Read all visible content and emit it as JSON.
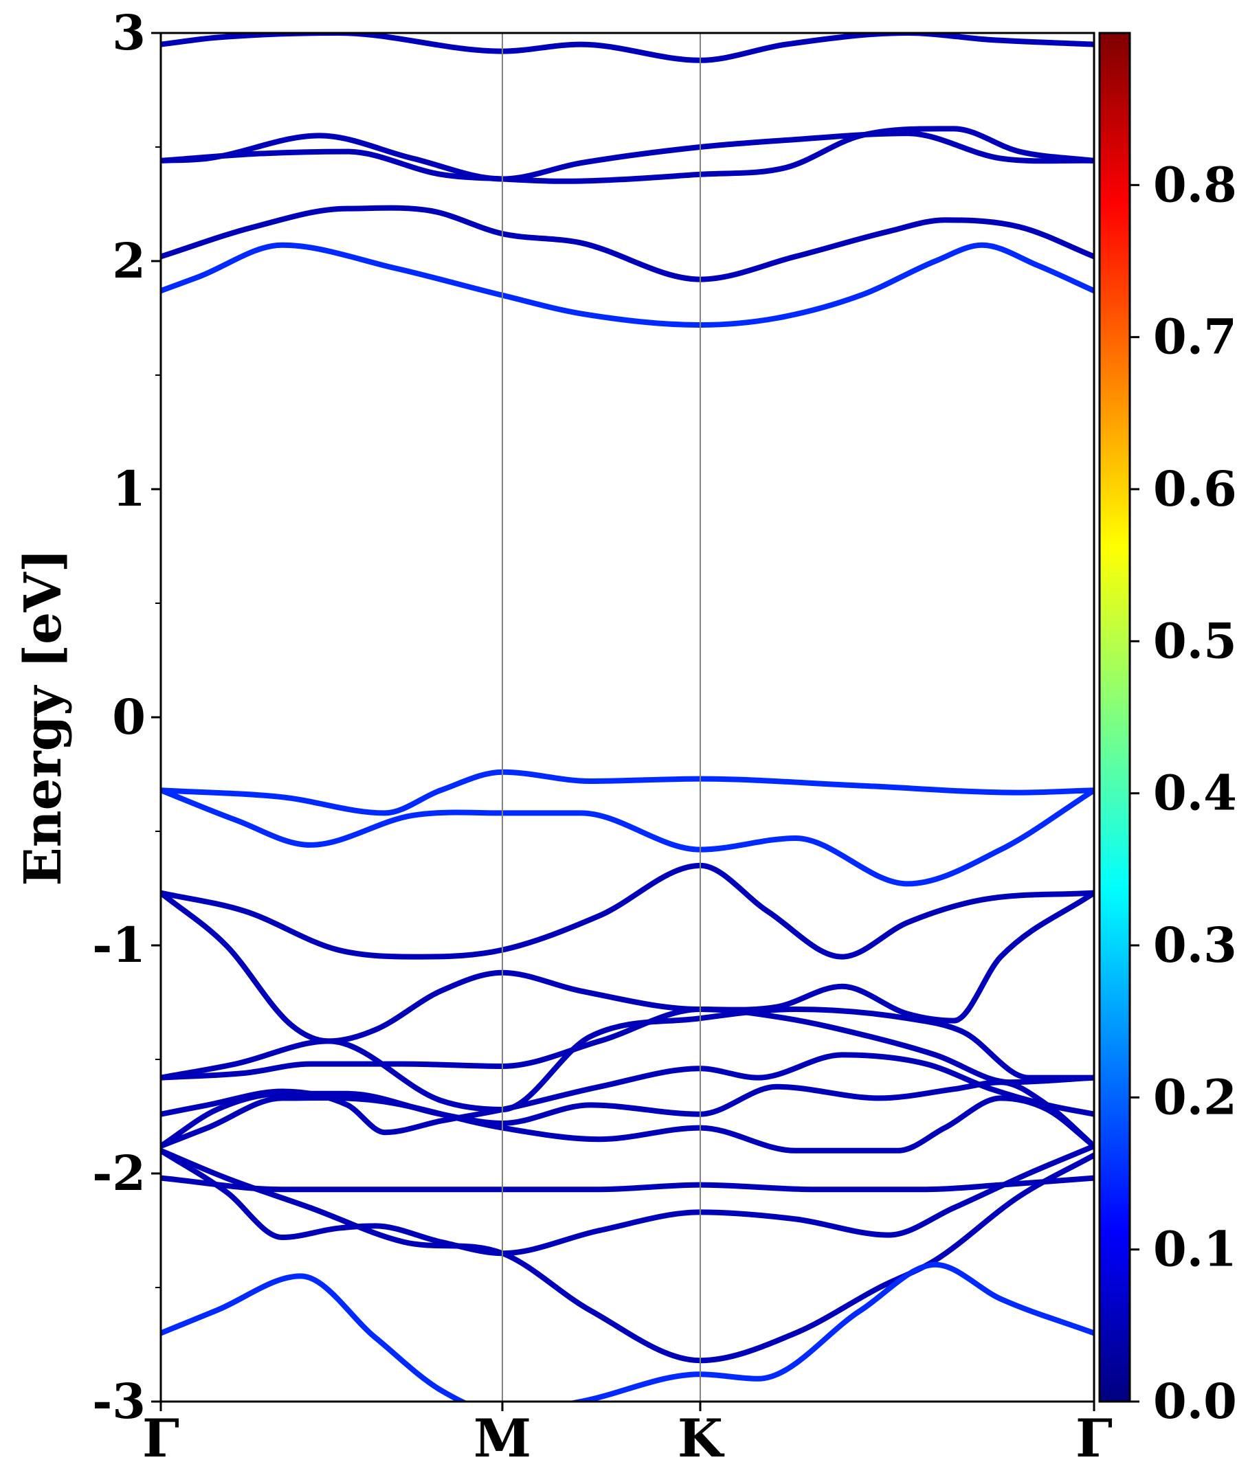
{
  "chart_data": {
    "type": "line",
    "title": "",
    "xlabel": "",
    "ylabel": "Energy [eV]",
    "ylim": [
      -3,
      3
    ],
    "yticks": [
      -3,
      -2,
      -1,
      0,
      1,
      2,
      3
    ],
    "ytick_labels": [
      "-3",
      "-2",
      "-1",
      "0",
      "1",
      "2",
      "3"
    ],
    "kpoint_labels": [
      "Γ",
      "M",
      "K",
      "Γ"
    ],
    "kpoint_positions": [
      0,
      0.366,
      0.578,
      1
    ],
    "grid": false,
    "colorbar": {
      "min": 0.0,
      "max": 0.9,
      "colormap": "jet",
      "ticks": [
        0.0,
        0.1,
        0.2,
        0.3,
        0.4,
        0.5,
        0.6,
        0.7,
        0.8
      ],
      "tick_labels": [
        "0.0",
        "0.1",
        "0.2",
        "0.3",
        "0.4",
        "0.5",
        "0.6",
        "0.7",
        "0.8"
      ]
    },
    "x_axis": "k-path fraction from Γ (0) to Γ (1)",
    "series": [
      {
        "weight": 0.05,
        "x": [
          0,
          0.06,
          0.19,
          0.366,
          0.45,
          0.578,
          0.67,
          0.8,
          0.89,
          1
        ],
        "values": [
          2.95,
          2.98,
          3.0,
          2.92,
          2.95,
          2.88,
          2.95,
          3.0,
          2.97,
          2.95
        ]
      },
      {
        "weight": 0.05,
        "x": [
          0,
          0.05,
          0.17,
          0.27,
          0.366,
          0.45,
          0.578,
          0.67,
          0.8,
          0.9,
          1
        ],
        "values": [
          2.44,
          2.45,
          2.55,
          2.45,
          2.36,
          2.43,
          2.5,
          2.53,
          2.56,
          2.45,
          2.44
        ]
      },
      {
        "weight": 0.05,
        "x": [
          0,
          0.1,
          0.2,
          0.3,
          0.366,
          0.43,
          0.578,
          0.67,
          0.75,
          0.85,
          0.92,
          1
        ],
        "values": [
          2.44,
          2.47,
          2.48,
          2.38,
          2.36,
          2.35,
          2.38,
          2.41,
          2.55,
          2.58,
          2.48,
          2.44
        ]
      },
      {
        "weight": 0.05,
        "x": [
          0,
          0.1,
          0.2,
          0.29,
          0.366,
          0.45,
          0.578,
          0.68,
          0.78,
          0.84,
          0.92,
          1
        ],
        "values": [
          2.02,
          2.15,
          2.23,
          2.22,
          2.12,
          2.08,
          1.92,
          2.02,
          2.13,
          2.18,
          2.15,
          2.02
        ]
      },
      {
        "weight": 0.15,
        "x": [
          0,
          0.04,
          0.13,
          0.25,
          0.366,
          0.45,
          0.578,
          0.66,
          0.75,
          0.83,
          0.88,
          0.94,
          1
        ],
        "values": [
          1.87,
          1.93,
          2.07,
          1.97,
          1.85,
          1.77,
          1.72,
          1.75,
          1.85,
          2.0,
          2.07,
          1.98,
          1.87
        ]
      },
      {
        "weight": 0.15,
        "x": [
          0,
          0.13,
          0.24,
          0.3,
          0.366,
          0.46,
          0.578,
          0.75,
          0.92,
          1
        ],
        "values": [
          -0.32,
          -0.35,
          -0.42,
          -0.32,
          -0.24,
          -0.28,
          -0.27,
          -0.3,
          -0.33,
          -0.32
        ]
      },
      {
        "weight": 0.15,
        "x": [
          0,
          0.08,
          0.16,
          0.27,
          0.366,
          0.45,
          0.578,
          0.68,
          0.8,
          0.9,
          1
        ],
        "values": [
          -0.32,
          -0.45,
          -0.56,
          -0.43,
          -0.42,
          -0.42,
          -0.58,
          -0.53,
          -0.73,
          -0.58,
          -0.32
        ]
      },
      {
        "weight": 0.05,
        "x": [
          0,
          0.09,
          0.19,
          0.28,
          0.366,
          0.47,
          0.578,
          0.65,
          0.73,
          0.8,
          0.88,
          1
        ],
        "values": [
          -0.77,
          -0.85,
          -1.02,
          -1.05,
          -1.02,
          -0.87,
          -0.65,
          -0.85,
          -1.05,
          -0.9,
          -0.8,
          -0.77
        ]
      },
      {
        "weight": 0.05,
        "x": [
          0,
          0.07,
          0.14,
          0.18,
          0.23,
          0.3,
          0.366,
          0.45,
          0.578,
          0.66,
          0.73,
          0.8,
          0.85,
          0.9,
          1
        ],
        "values": [
          -0.77,
          -1.0,
          -1.35,
          -1.42,
          -1.37,
          -1.2,
          -1.12,
          -1.2,
          -1.28,
          -1.27,
          -1.18,
          -1.3,
          -1.33,
          -1.05,
          -0.77
        ]
      },
      {
        "weight": 0.05,
        "x": [
          0,
          0.08,
          0.18,
          0.3,
          0.366,
          0.46,
          0.578,
          0.68,
          0.8,
          0.86,
          0.93,
          1
        ],
        "values": [
          -1.58,
          -1.52,
          -1.42,
          -1.68,
          -1.72,
          -1.4,
          -1.32,
          -1.28,
          -1.32,
          -1.38,
          -1.58,
          -1.58
        ]
      },
      {
        "weight": 0.05,
        "x": [
          0,
          0.09,
          0.16,
          0.26,
          0.366,
          0.47,
          0.578,
          0.67,
          0.76,
          0.83,
          0.91,
          1
        ],
        "values": [
          -1.58,
          -1.56,
          -1.52,
          -1.52,
          -1.53,
          -1.42,
          -1.28,
          -1.32,
          -1.4,
          -1.48,
          -1.6,
          -1.58
        ]
      },
      {
        "weight": 0.05,
        "x": [
          0,
          0.05,
          0.13,
          0.2,
          0.24,
          0.3,
          0.366,
          0.47,
          0.578,
          0.64,
          0.73,
          0.82,
          0.89,
          0.95,
          1
        ],
        "values": [
          -1.74,
          -1.7,
          -1.64,
          -1.7,
          -1.82,
          -1.77,
          -1.72,
          -1.62,
          -1.54,
          -1.58,
          -1.48,
          -1.52,
          -1.63,
          -1.7,
          -1.74
        ]
      },
      {
        "weight": 0.05,
        "x": [
          0,
          0.06,
          0.13,
          0.2,
          0.3,
          0.366,
          0.46,
          0.578,
          0.66,
          0.77,
          0.85,
          0.9,
          0.95,
          1
        ],
        "values": [
          -1.88,
          -1.72,
          -1.65,
          -1.65,
          -1.74,
          -1.78,
          -1.7,
          -1.74,
          -1.62,
          -1.67,
          -1.63,
          -1.6,
          -1.7,
          -1.88
        ]
      },
      {
        "weight": 0.05,
        "x": [
          0,
          0.05,
          0.13,
          0.23,
          0.366,
          0.47,
          0.578,
          0.68,
          0.79,
          0.84,
          0.9,
          0.95,
          1
        ],
        "values": [
          -1.88,
          -1.8,
          -1.67,
          -1.68,
          -1.8,
          -1.85,
          -1.8,
          -1.9,
          -1.9,
          -1.8,
          -1.67,
          -1.72,
          -1.88
        ]
      },
      {
        "weight": 0.05,
        "x": [
          0,
          0.13,
          0.23,
          0.366,
          0.47,
          0.578,
          0.7,
          0.82,
          0.9,
          1
        ],
        "values": [
          -2.02,
          -2.07,
          -2.07,
          -2.07,
          -2.07,
          -2.05,
          -2.07,
          -2.07,
          -2.05,
          -2.02
        ]
      },
      {
        "weight": 0.05,
        "x": [
          0,
          0.07,
          0.13,
          0.19,
          0.23,
          0.3,
          0.366,
          0.47,
          0.578,
          0.68,
          0.78,
          0.85,
          0.93,
          1
        ],
        "values": [
          -1.9,
          -2.08,
          -2.28,
          -2.24,
          -2.23,
          -2.3,
          -2.35,
          -2.25,
          -2.17,
          -2.2,
          -2.27,
          -2.15,
          -2.0,
          -1.88
        ]
      },
      {
        "weight": 0.05,
        "x": [
          0,
          0.07,
          0.16,
          0.26,
          0.366,
          0.46,
          0.578,
          0.68,
          0.77,
          0.83,
          0.92,
          1
        ],
        "values": [
          -1.9,
          -2.02,
          -2.15,
          -2.3,
          -2.35,
          -2.6,
          -2.82,
          -2.7,
          -2.5,
          -2.38,
          -2.1,
          -1.92
        ]
      },
      {
        "weight": 0.15,
        "x": [
          0,
          0.06,
          0.15,
          0.23,
          0.3,
          0.366,
          0.45,
          0.578,
          0.64,
          0.75,
          0.83,
          0.9,
          1
        ],
        "values": [
          -2.7,
          -2.6,
          -2.45,
          -2.72,
          -2.95,
          -3.05,
          -3.0,
          -2.88,
          -2.9,
          -2.6,
          -2.4,
          -2.55,
          -2.7
        ]
      }
    ]
  }
}
